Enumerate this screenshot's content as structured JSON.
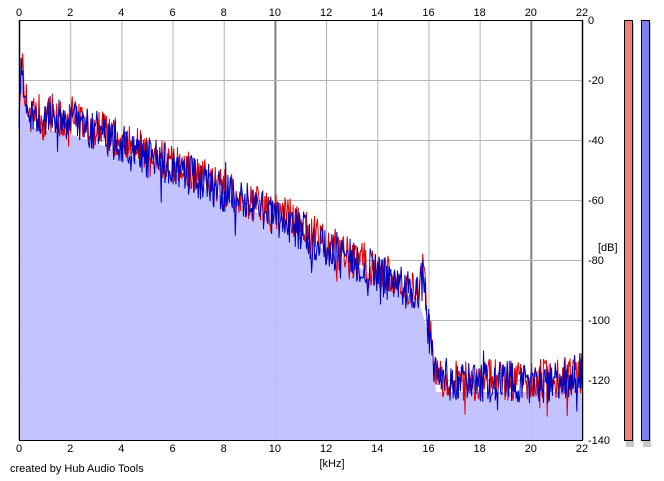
{
  "chart_data": {
    "type": "area",
    "title": "",
    "xlabel": "[kHz]",
    "ylabel": "[dB]",
    "xlim": [
      0,
      22
    ],
    "ylim": [
      -140,
      0
    ],
    "x_ticks": [
      0,
      2,
      4,
      6,
      8,
      10,
      12,
      14,
      16,
      18,
      20,
      22
    ],
    "y_ticks": [
      0,
      -20,
      -40,
      -60,
      -80,
      -100,
      -120,
      -140
    ],
    "x_tick_labels": [
      "0",
      "2",
      "4",
      "6",
      "8",
      "10",
      "12",
      "14",
      "16",
      "18",
      "20",
      "22"
    ],
    "y_tick_labels": [
      "0",
      "-20",
      "-40",
      "-60",
      "-80",
      "-100",
      "-120",
      "-140"
    ],
    "grid": true,
    "series": [
      {
        "color": "#e00000",
        "x": [
          0.0,
          0.1,
          0.2,
          0.4,
          0.6,
          0.8,
          1.0,
          1.2,
          1.5,
          1.8,
          2.0,
          2.5,
          3.0,
          3.5,
          4.0,
          4.5,
          5.0,
          5.5,
          6.0,
          6.5,
          7.0,
          7.5,
          8.0,
          8.5,
          9.0,
          9.5,
          10.0,
          10.5,
          11.0,
          11.5,
          12.0,
          12.5,
          13.0,
          13.5,
          14.0,
          14.5,
          15.0,
          15.5,
          15.8,
          16.0,
          16.2,
          16.5,
          17.0,
          18.0,
          19.0,
          20.0,
          21.0,
          22.0
        ],
        "values": [
          -28,
          -14,
          -22,
          -30,
          -33,
          -31,
          -34,
          -30,
          -32,
          -35,
          -32,
          -34,
          -36,
          -38,
          -40,
          -42,
          -45,
          -46,
          -47,
          -50,
          -52,
          -54,
          -56,
          -58,
          -60,
          -62,
          -64,
          -66,
          -69,
          -72,
          -74,
          -77,
          -79,
          -81,
          -83,
          -86,
          -88,
          -90,
          -84,
          -100,
          -114,
          -120,
          -120,
          -120,
          -120,
          -120,
          -120,
          -118
        ]
      },
      {
        "color": "#0000c0",
        "x": [
          0.0,
          0.1,
          0.2,
          0.4,
          0.6,
          0.8,
          1.0,
          1.2,
          1.5,
          1.8,
          2.0,
          2.5,
          3.0,
          3.5,
          4.0,
          4.5,
          5.0,
          5.5,
          6.0,
          6.5,
          7.0,
          7.5,
          8.0,
          8.5,
          9.0,
          9.5,
          10.0,
          10.5,
          11.0,
          11.5,
          12.0,
          12.5,
          13.0,
          13.5,
          14.0,
          14.5,
          15.0,
          15.5,
          15.8,
          16.0,
          16.2,
          16.5,
          17.0,
          18.0,
          19.0,
          20.0,
          21.0,
          22.0
        ],
        "values": [
          -29,
          -12,
          -21,
          -31,
          -34,
          -32,
          -33,
          -31,
          -33,
          -34,
          -33,
          -35,
          -37,
          -39,
          -41,
          -43,
          -46,
          -47,
          -48,
          -51,
          -53,
          -55,
          -57,
          -59,
          -61,
          -63,
          -65,
          -67,
          -70,
          -73,
          -75,
          -78,
          -80,
          -82,
          -84,
          -87,
          -89,
          -91,
          -86,
          -102,
          -116,
          -121,
          -121,
          -121,
          -120,
          -121,
          -121,
          -117
        ]
      }
    ],
    "fill": {
      "color": "#c0c0ff",
      "x": [
        0.0,
        0.1,
        0.3,
        0.6,
        1.0,
        1.5,
        2.0,
        3.0,
        4.0,
        5.0,
        6.0,
        7.0,
        8.0,
        9.0,
        10.0,
        11.0,
        12.0,
        13.0,
        14.0,
        15.0,
        15.6,
        16.0,
        16.3,
        17.0,
        18.0,
        19.0,
        20.0,
        21.0,
        22.0
      ],
      "values": [
        -35,
        -20,
        -33,
        -36,
        -37,
        -37,
        -38,
        -41,
        -44,
        -48,
        -51,
        -55,
        -59,
        -63,
        -67,
        -72,
        -77,
        -81,
        -86,
        -91,
        -93,
        -105,
        -124,
        -124,
        -124,
        -124,
        -124,
        -124,
        -121
      ]
    },
    "channel_meters": [
      {
        "color": "#f08080"
      },
      {
        "color": "#8080f0"
      }
    ],
    "colors": {
      "grid": "#b4b4b4",
      "grid_major": "#808080",
      "frame": "#000000"
    }
  },
  "footer": {
    "credit": "created by Hub Audio Tools"
  }
}
